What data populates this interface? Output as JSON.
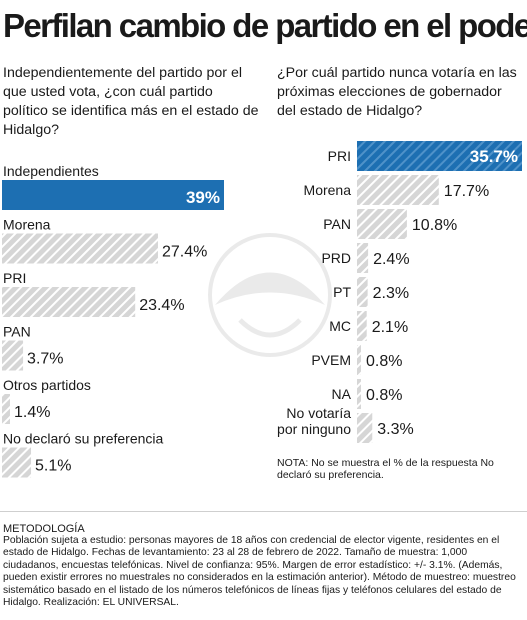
{
  "title": "Perfilan cambio de partido en el poder",
  "left_question": "Independientemente del partido por el que usted vota, ¿con cuál partido político se identifica más en el estado de Hidalgo?",
  "right_question": "¿Por cuál partido nunca votaría en las próximas elecciones de gobernador del estado de Hidalgo?",
  "note": "NOTA: No se muestra el % de la respuesta No declaró su preferencia.",
  "methodology_title": "METODOLOGÍA",
  "methodology_text": "Población sujeta a estudio: personas mayores de 18 años con credencial de elector vigente, residentes en el estado de Hidalgo. Fechas de levantamiento: 23 al 28 de febrero de 2022. Tamaño de muestra: 1,000 ciudadanos, encuestas telefónicas. Nivel de confianza: 95%. Margen de error estadístico: +/- 3.1%. (Además, pueden existir errores no muestrales no considerados en la estimación anterior). Método de muestreo: muestreo sistemático basado en el listado de los números telefónicos de líneas fijas y teléfonos celulares del estado de Hidalgo. Realización: EL UNIVERSAL.",
  "colors": {
    "highlight": "#1d6fb2",
    "bar_fill": "#d6d6d6",
    "bar_hatch": "#ffffff",
    "text": "#1a1a1a"
  },
  "chart_data": [
    {
      "type": "bar",
      "orientation": "horizontal",
      "categories": [
        "Independientes",
        "Morena",
        "PRI",
        "PAN",
        "Otros partidos",
        "No declaró su preferencia"
      ],
      "values": [
        39,
        27.4,
        23.4,
        3.7,
        1.4,
        5.1
      ],
      "value_labels": [
        "39%",
        "27.4%",
        "23.4%",
        "3.7%",
        "1.4%",
        "5.1%"
      ],
      "highlight_index": 0,
      "unit": "%"
    },
    {
      "type": "bar",
      "orientation": "horizontal",
      "categories": [
        "PRI",
        "Morena",
        "PAN",
        "PRD",
        "PT",
        "MC",
        "PVEM",
        "NA",
        "No votaría por ninguno"
      ],
      "category_lines": [
        [
          "PRI"
        ],
        [
          "Morena"
        ],
        [
          "PAN"
        ],
        [
          "PRD"
        ],
        [
          "PT"
        ],
        [
          "MC"
        ],
        [
          "PVEM"
        ],
        [
          "NA"
        ],
        [
          "No votaría",
          "por ninguno"
        ]
      ],
      "values": [
        35.7,
        17.7,
        10.8,
        2.4,
        2.3,
        2.1,
        0.8,
        0.8,
        3.3
      ],
      "value_labels": [
        "35.7%",
        "17.7%",
        "10.8%",
        "2.4%",
        "2.3%",
        "2.1%",
        "0.8%",
        "0.8%",
        "3.3%"
      ],
      "highlight_index": 0,
      "unit": "%"
    }
  ]
}
